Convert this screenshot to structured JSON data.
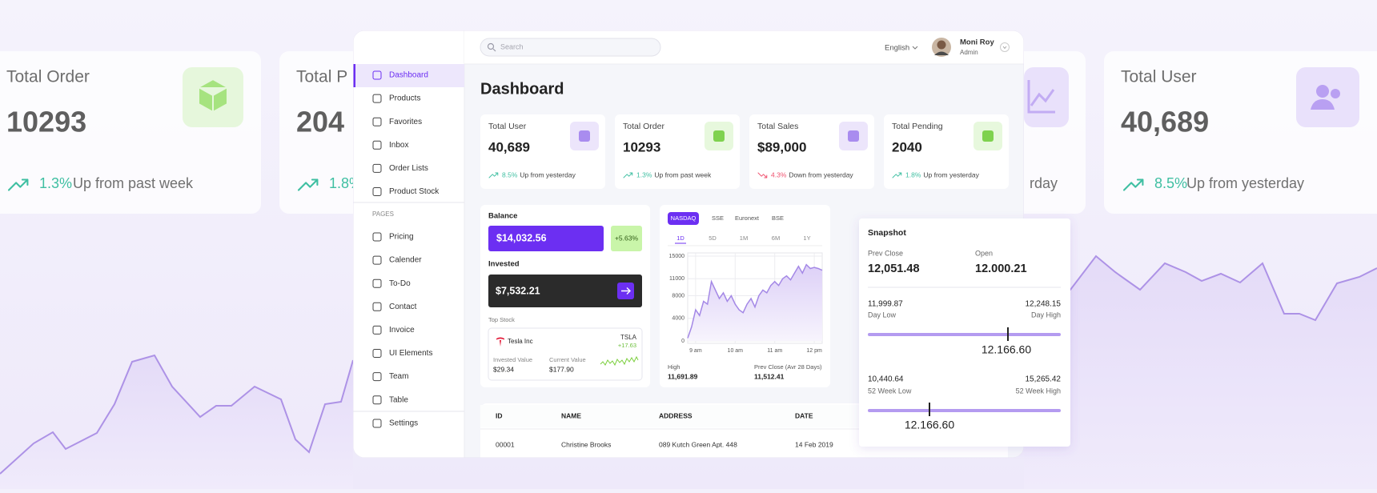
{
  "background_cards": [
    {
      "title": "Total Order",
      "value": "10293",
      "change": "1.3%",
      "change_text": "Up from past week"
    },
    {
      "title": "Total P",
      "value": "204",
      "change": "1.8%"
    },
    {
      "change_text": "rday"
    },
    {
      "title": "Total User",
      "value": "40,689",
      "change": "8.5%",
      "change_text": "Up from yesterday"
    }
  ],
  "header": {
    "search_placeholder": "Search",
    "language": "English",
    "user_name": "Moni Roy",
    "user_role": "Admin"
  },
  "sidebar": {
    "main": [
      "Dashboard",
      "Products",
      "Favorites",
      "Inbox",
      "Order Lists",
      "Product Stock"
    ],
    "section": "PAGES",
    "pages": [
      "Pricing",
      "Calender",
      "To-Do",
      "Contact",
      "Invoice",
      "UI Elements",
      "Team",
      "Table"
    ],
    "footer": [
      "Settings"
    ]
  },
  "page_title": "Dashboard",
  "stats": [
    {
      "title": "Total User",
      "value": "40,689",
      "change": "8.5%",
      "change_text": "Up from yesterday",
      "trend": "up"
    },
    {
      "title": "Total Order",
      "value": "10293",
      "change": "1.3%",
      "change_text": "Up from past week",
      "trend": "up"
    },
    {
      "title": "Total Sales",
      "value": "$89,000",
      "change": "4.3%",
      "change_text": "Down from yesterday",
      "trend": "down"
    },
    {
      "title": "Total Pending",
      "value": "2040",
      "change": "1.8%",
      "change_text": "Up from yesterday",
      "trend": "up"
    }
  ],
  "balance": {
    "label": "Balance",
    "amount": "$14,032.56",
    "change": "+5.63%",
    "invested_label": "Invested",
    "invested_amount": "$7,532.21",
    "top_stock_label": "Top Stock",
    "stock": {
      "name": "Tesla Inc",
      "ticker": "TSLA",
      "change": "+17.63",
      "invested_label": "Invested Value",
      "invested_value": "$29.34",
      "current_label": "Current Value",
      "current_value": "$177.90"
    }
  },
  "market_chart": {
    "type": "line",
    "tabs": [
      "NASDAQ",
      "SSE",
      "Euronext",
      "BSE"
    ],
    "ranges": [
      "1D",
      "5D",
      "1M",
      "6M",
      "1Y"
    ],
    "x": [
      8.8,
      8.9,
      9.0,
      9.1,
      9.2,
      9.3,
      9.4,
      9.5,
      9.6,
      9.7,
      9.8,
      9.9,
      10.0,
      10.1,
      10.2,
      10.3,
      10.4,
      10.5,
      10.6,
      10.7,
      10.8,
      10.9,
      11.0,
      11.1,
      11.2,
      11.3,
      11.4,
      11.5,
      11.6,
      11.7,
      11.8,
      11.9,
      12.0,
      12.1,
      12.2
    ],
    "values": [
      500,
      2500,
      5500,
      4500,
      7000,
      6500,
      10500,
      9000,
      7500,
      8500,
      7000,
      8000,
      6500,
      5500,
      5000,
      6500,
      7500,
      6000,
      8000,
      9000,
      8500,
      9800,
      10500,
      9800,
      11000,
      11500,
      10800,
      12000,
      13200,
      12000,
      13500,
      12800,
      13000,
      12800,
      12500
    ],
    "xlim": [
      8.8,
      12.2
    ],
    "ylim": [
      0,
      15000
    ],
    "xticks": [
      {
        "value": 9,
        "label": "9 am"
      },
      {
        "value": 10,
        "label": "10 am"
      },
      {
        "value": 11,
        "label": "11 am"
      },
      {
        "value": 12,
        "label": "12 pm"
      }
    ],
    "yticks": [
      0,
      4000,
      8000,
      11000,
      15000
    ],
    "color": "#a488e6",
    "grid": true,
    "high_label": "High",
    "high_value": "11,691.89",
    "prev_close_label": "Prev Close (Avr 28 Days)",
    "prev_close_value": "11,512.41"
  },
  "table": {
    "headers": [
      "ID",
      "NAME",
      "ADDRESS",
      "DATE"
    ],
    "rows": [
      [
        "00001",
        "Christine Brooks",
        "089 Kutch Green Apt. 448",
        "14 Feb 2019"
      ]
    ]
  },
  "snapshot": {
    "title": "Snapshot",
    "prev_close_label": "Prev Close",
    "prev_close": "12,051.48",
    "open_label": "Open",
    "open": "12.000.21",
    "day_low": "11,999.87",
    "day_low_label": "Day Low",
    "day_high": "12,248.15",
    "day_high_label": "Day High",
    "day_current": "12.166.60",
    "week_low": "10,440.64",
    "week_low_label": "52 Week Low",
    "week_high": "15,265.42",
    "week_high_label": "52 Week High",
    "week_current": "12.166.60"
  }
}
